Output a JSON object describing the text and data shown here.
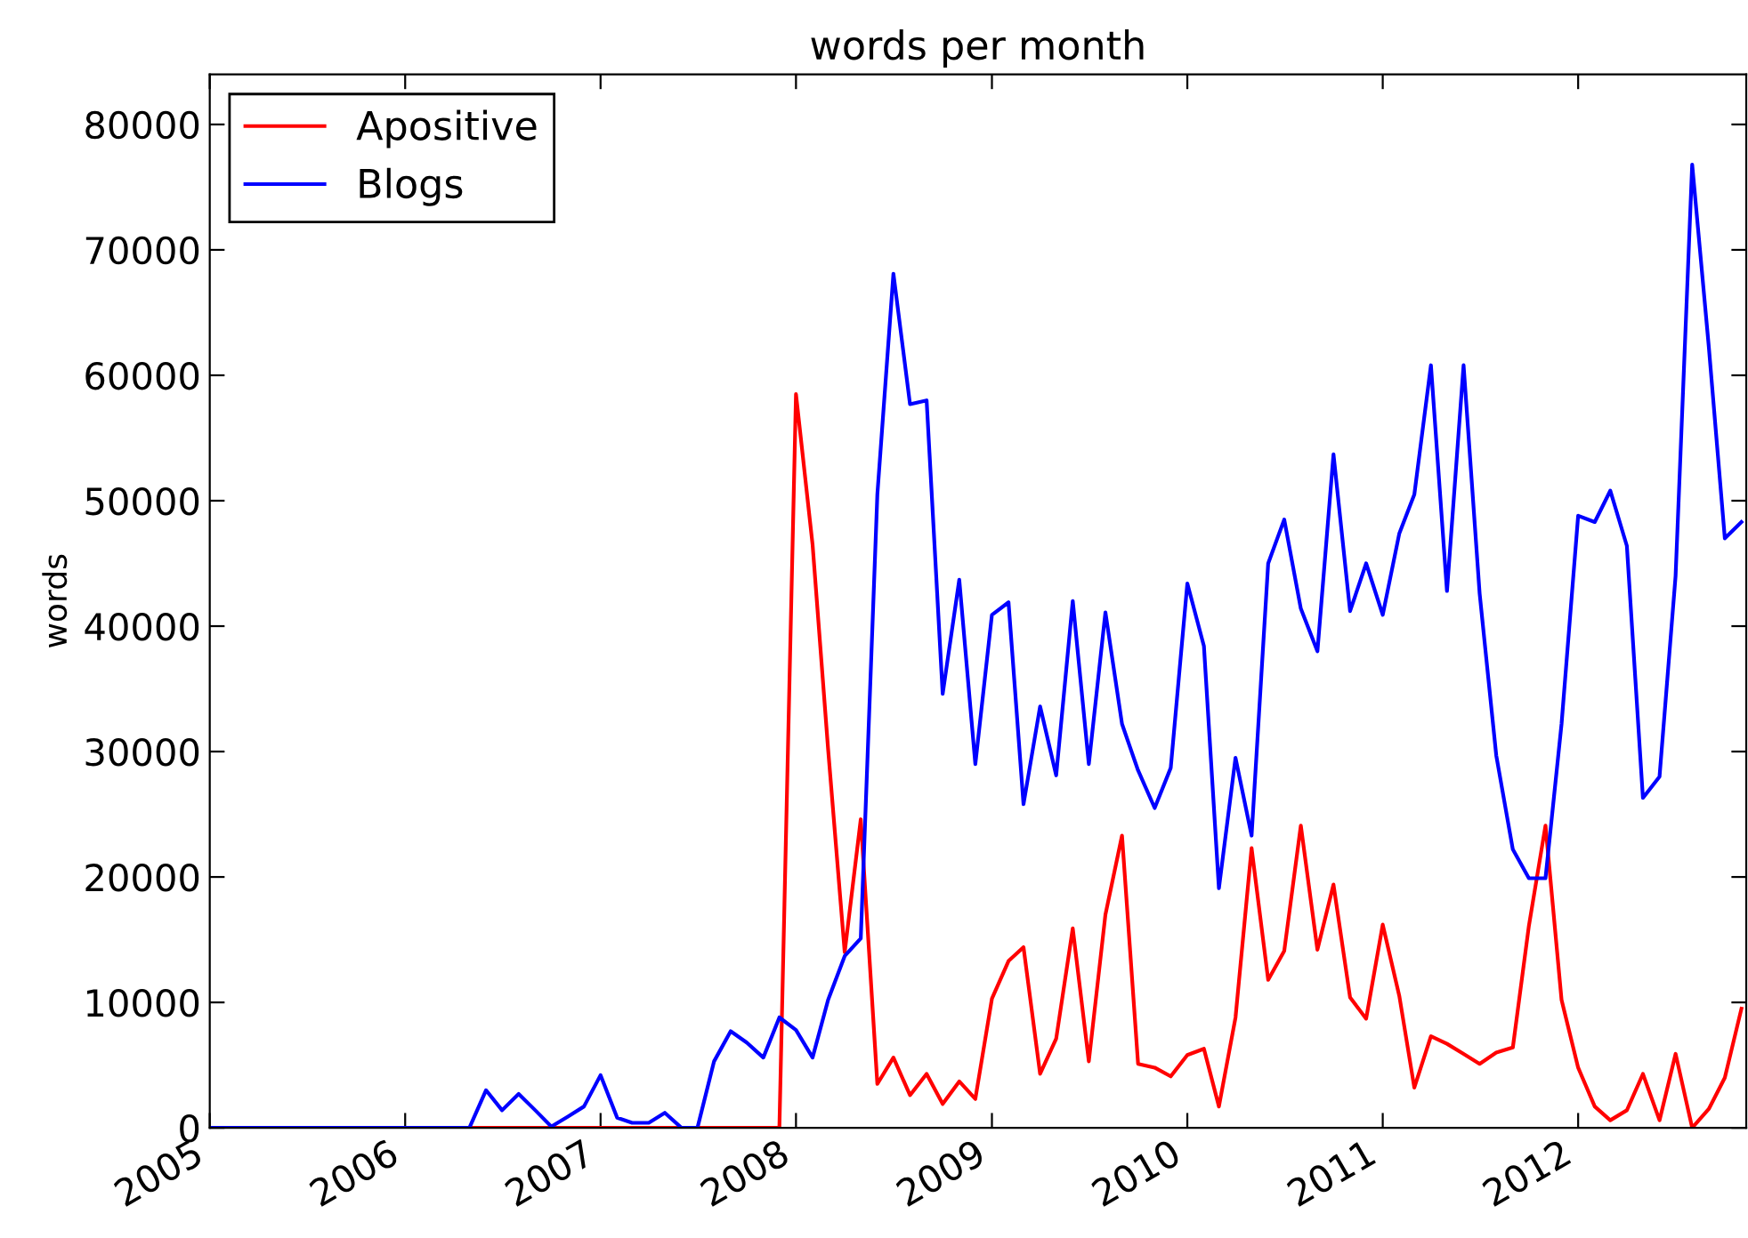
{
  "chart_data": {
    "type": "line",
    "title": "words per month",
    "ylabel": "words",
    "x": [
      "2005-01",
      "2005-02",
      "2005-03",
      "2005-04",
      "2005-05",
      "2005-06",
      "2005-07",
      "2005-08",
      "2005-09",
      "2005-10",
      "2005-11",
      "2005-12",
      "2006-01",
      "2006-02",
      "2006-03",
      "2006-04",
      "2006-05",
      "2006-06",
      "2006-07",
      "2006-08",
      "2006-09",
      "2006-10",
      "2006-11",
      "2006-12",
      "2007-01",
      "2007-02",
      "2007-03",
      "2007-04",
      "2007-05",
      "2007-06",
      "2007-07",
      "2007-08",
      "2007-09",
      "2007-10",
      "2007-11",
      "2007-12",
      "2008-01",
      "2008-02",
      "2008-03",
      "2008-04",
      "2008-05",
      "2008-06",
      "2008-07",
      "2008-08",
      "2008-09",
      "2008-10",
      "2008-11",
      "2008-12",
      "2009-01",
      "2009-02",
      "2009-03",
      "2009-04",
      "2009-05",
      "2009-06",
      "2009-07",
      "2009-08",
      "2009-09",
      "2009-10",
      "2009-11",
      "2009-12",
      "2010-01",
      "2010-02",
      "2010-03",
      "2010-04",
      "2010-05",
      "2010-06",
      "2010-07",
      "2010-08",
      "2010-09",
      "2010-10",
      "2010-11",
      "2010-12",
      "2011-01",
      "2011-02",
      "2011-03",
      "2011-04",
      "2011-05",
      "2011-06",
      "2011-07",
      "2011-08",
      "2011-09",
      "2011-10",
      "2011-11",
      "2011-12",
      "2012-01",
      "2012-02",
      "2012-03",
      "2012-04",
      "2012-05",
      "2012-06",
      "2012-07",
      "2012-08",
      "2012-09",
      "2012-10",
      "2012-11"
    ],
    "series": [
      {
        "name": "Apositive",
        "color": "#ff0000",
        "values": [
          null,
          null,
          null,
          null,
          null,
          null,
          null,
          null,
          null,
          null,
          null,
          null,
          null,
          null,
          null,
          0,
          0,
          0,
          0,
          0,
          0,
          0,
          0,
          0,
          0,
          0,
          0,
          0,
          0,
          0,
          0,
          0,
          0,
          0,
          0,
          0,
          58500,
          46500,
          30200,
          14000,
          24600,
          3500,
          5600,
          2600,
          4300,
          1900,
          3700,
          2300,
          10300,
          13300,
          14400,
          4300,
          7100,
          15900,
          5300,
          17000,
          23300,
          5100,
          4800,
          4100,
          5800,
          6300,
          1700,
          8800,
          22300,
          11800,
          14100,
          24100,
          14200,
          19400,
          10400,
          8700,
          16200,
          10500,
          3200,
          7300,
          6700,
          5900,
          5100,
          6000,
          6400,
          16100,
          24100,
          10200,
          4800,
          1700,
          600,
          1400,
          4300,
          600,
          5900,
          0,
          1500,
          4000,
          9500
        ]
      },
      {
        "name": "Blogs",
        "color": "#0000ff",
        "values": [
          0,
          0,
          0,
          0,
          0,
          0,
          0,
          0,
          0,
          0,
          0,
          0,
          0,
          0,
          0,
          0,
          0,
          3000,
          1400,
          2700,
          1400,
          100,
          900,
          1700,
          4200,
          800,
          400,
          400,
          1200,
          0,
          0,
          5300,
          7700,
          6800,
          5600,
          8800,
          7800,
          5600,
          10200,
          13700,
          15100,
          50500,
          68100,
          57700,
          58000,
          34600,
          43700,
          29000,
          40900,
          41900,
          25800,
          33600,
          28100,
          42000,
          29000,
          41100,
          32200,
          28500,
          25500,
          28700,
          43400,
          38400,
          19100,
          29500,
          23300,
          45000,
          48500,
          41400,
          38000,
          53700,
          41200,
          45000,
          40900,
          47400,
          50500,
          60800,
          42800,
          60800,
          42600,
          29700,
          22200,
          19900,
          19900,
          32200,
          48800,
          48300,
          50800,
          46400,
          26300,
          28000,
          44000,
          76800,
          62300,
          47000,
          48300
        ]
      }
    ],
    "xlim": [
      "2005-01",
      "2012-11-10"
    ],
    "xticks": [
      {
        "value": "2005",
        "label": "2005"
      },
      {
        "value": "2006",
        "label": "2006"
      },
      {
        "value": "2007",
        "label": "2007"
      },
      {
        "value": "2008",
        "label": "2008"
      },
      {
        "value": "2009",
        "label": "2009"
      },
      {
        "value": "2010",
        "label": "2010"
      },
      {
        "value": "2011",
        "label": "2011"
      },
      {
        "value": "2012",
        "label": "2012"
      }
    ],
    "ylim": [
      0,
      84000
    ],
    "yticks": [
      0,
      10000,
      20000,
      30000,
      40000,
      50000,
      60000,
      70000,
      80000
    ],
    "legend": "top left",
    "grid": false
  }
}
